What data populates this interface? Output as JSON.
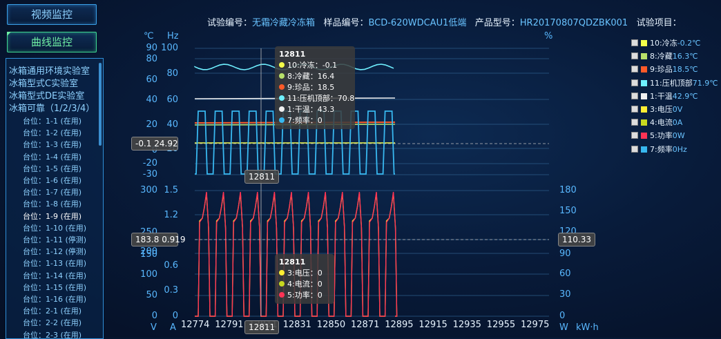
{
  "nav": {
    "video": "视频监控",
    "curve": "曲线监控"
  },
  "labs": [
    "冰箱通用环境实验室",
    "冰箱型式C实验室",
    "冰箱型式DE实验室",
    "冰箱可靠（1/2/3/4）"
  ],
  "stations": [
    "台位：1-1 (在用)",
    "台位：1-2 (在用)",
    "台位：1-3 (在用)",
    "台位：1-4 (在用)",
    "台位：1-5 (在用)",
    "台位：1-6 (在用)",
    "台位：1-7 (在用)",
    "台位：1-8 (在用)",
    "台位：1-9 (在用)",
    "台位：1-10 (在用)",
    "台位：1-11 (停测)",
    "台位：1-12 (停测)",
    "台位：1-13 (在用)",
    "台位：1-14 (在用)",
    "台位：1-15 (在用)",
    "台位：1-16 (在用)",
    "台位：2-1 (在用)",
    "台位：2-2 (在用)",
    "台位：2-3 (在用)"
  ],
  "selected_station": "台位：1-9 (在用)",
  "header": {
    "test_no_label": "试验编号：",
    "test_no": "无霜冷藏冷冻箱",
    "sample_label": "样品编号：",
    "sample": "BCD-620WDCAU1低端",
    "model_label": "产品型号：",
    "model": "HR20170807QDZBK001",
    "item_label": "试验项目："
  },
  "top_axes": {
    "unit_c": "℃",
    "unit_hz": "Hz",
    "unit_pct": "%",
    "c_ticks": [
      "90",
      "80",
      "60",
      "40",
      "20",
      "0",
      "-20",
      "-30"
    ],
    "hz_ticks": [
      "100",
      "80",
      "60",
      "40",
      "20"
    ]
  },
  "bottom_axes": {
    "w_ticks": [
      "300",
      "250",
      "200",
      "150",
      "100",
      "50",
      "0"
    ],
    "a_ticks": [
      "1.5",
      "1.2",
      "0.9",
      "0.6",
      "0.3",
      "0"
    ],
    "kwh_ticks": [
      "180",
      "150",
      "120",
      "90",
      "60",
      "30",
      "0"
    ],
    "unit_v": "V",
    "unit_a": "A",
    "unit_w": "W",
    "unit_kwh": "kW·h"
  },
  "x_ticks": [
    "12774",
    "12791",
    "12811",
    "12831",
    "12850",
    "12871",
    "12895",
    "12915",
    "12935",
    "12955",
    "12975"
  ],
  "legend": [
    {
      "name": "10:冷冻",
      "value": "-0.2℃",
      "color": "#f4ff4a"
    },
    {
      "name": "8:冷藏",
      "value": "16.3℃",
      "color": "#b8e06a"
    },
    {
      "name": "9:珍品",
      "value": "18.5℃",
      "color": "#ff5a28"
    },
    {
      "name": "11:压机顶部",
      "value": "71.9℃",
      "color": "#6ff0ff"
    },
    {
      "name": "1:干温",
      "value": "42.9℃",
      "color": "#f0f0f0"
    },
    {
      "name": "3:电压",
      "value": "0V",
      "color": "#ffee33"
    },
    {
      "name": "4:电流",
      "value": "0A",
      "color": "#c8d820"
    },
    {
      "name": "5:功率",
      "value": "0W",
      "color": "#ff3355"
    },
    {
      "name": "7:频率",
      "value": "0Hz",
      "color": "#38b8f0"
    }
  ],
  "tooltip_top": {
    "title": "12811",
    "rows": [
      {
        "text": "10:冷冻：-0.1",
        "color": "#f4ff4a"
      },
      {
        "text": "8:冷藏：16.4",
        "color": "#b8e06a"
      },
      {
        "text": "9:珍品：18.5",
        "color": "#ff5a28"
      },
      {
        "text": "11:压机顶部：70.8",
        "color": "#6ff0ff"
      },
      {
        "text": "1:干温：43.3",
        "color": "#f0f0f0"
      },
      {
        "text": "7:频率：0",
        "color": "#38b8f0"
      }
    ]
  },
  "tooltip_bottom": {
    "title": "12811",
    "rows": [
      {
        "text": "3:电压：0",
        "color": "#ffee33"
      },
      {
        "text": "4:电流：0",
        "color": "#c8d820"
      },
      {
        "text": "5:功率：0",
        "color": "#ff3355"
      }
    ]
  },
  "tags": {
    "top_left_a": "-0.1",
    "top_left_b": "24.92",
    "top_x": "12811",
    "bot_left_a": "183.8",
    "bot_left_b": "0.919",
    "bot_right": "110.33",
    "bot_x": "12811"
  }
}
